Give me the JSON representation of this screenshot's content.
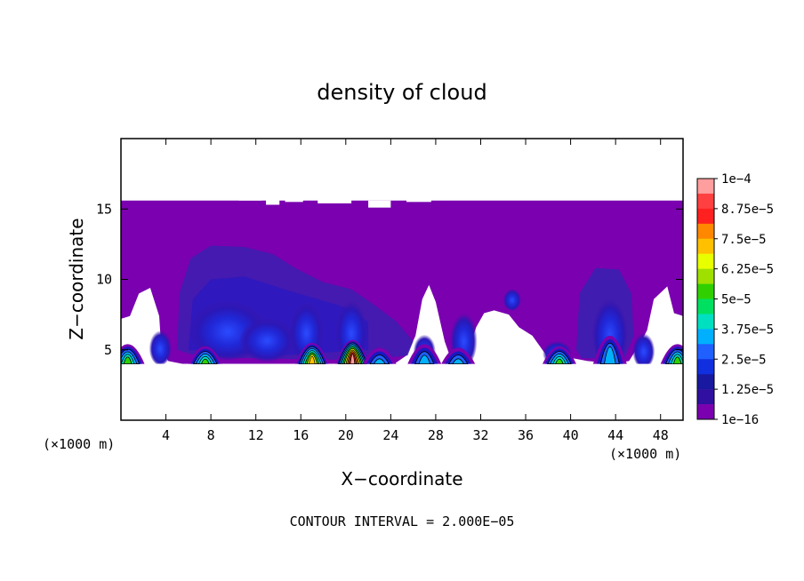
{
  "chart_data": {
    "type": "heatmap",
    "title": "density of cloud",
    "xlabel": "X−coordinate",
    "ylabel": "Z−coordinate",
    "x_unit_label": "(×1000 m)",
    "xlim": [
      0,
      50
    ],
    "ylim": [
      0,
      20
    ],
    "x_ticks": [
      4,
      8,
      12,
      16,
      20,
      24,
      28,
      32,
      36,
      40,
      44,
      48
    ],
    "y_ticks": [
      5,
      10,
      15
    ],
    "note": "CONTOUR INTERVAL = 2.000E−05",
    "colorbar": {
      "labels": [
        "1e−4",
        "8.75e−5",
        "7.5e−5",
        "6.25e−5",
        "5e−5",
        "3.75e−5",
        "2.5e−5",
        "1.25e−5",
        "1e−16"
      ],
      "colors": [
        "#ff9e9e",
        "#ff4040",
        "#ff2020",
        "#ff8800",
        "#ffc000",
        "#e8ff00",
        "#a0e000",
        "#30d000",
        "#00e060",
        "#00e0c0",
        "#00b0ff",
        "#2060ff",
        "#1030e0",
        "#1818a0",
        "#3010a0",
        "#7a00b0"
      ]
    },
    "regions": {
      "base_color": "#7a00b0",
      "mid_color": "#3b1fb0",
      "dark_color": "#2a18c0",
      "cloud_top_z": 15.6,
      "cloud_bottom_z": 4.0
    },
    "cores": [
      {
        "x": 0.6,
        "z": 4.8,
        "peak": "3.75e-5"
      },
      {
        "x": 7.5,
        "z": 4.5,
        "peak": "3.75e-5"
      },
      {
        "x": 17.0,
        "z": 5.0,
        "peak": "5e-5"
      },
      {
        "x": 20.6,
        "z": 5.4,
        "peak": "1e-4"
      },
      {
        "x": 23.0,
        "z": 4.3,
        "peak": "2.5e-5"
      },
      {
        "x": 27.0,
        "z": 4.8,
        "peak": "2.5e-5"
      },
      {
        "x": 30.0,
        "z": 4.3,
        "peak": "2.5e-5"
      },
      {
        "x": 39.0,
        "z": 4.5,
        "peak": "3.75e-5"
      },
      {
        "x": 43.5,
        "z": 6.0,
        "peak": "2.5e-5"
      },
      {
        "x": 49.5,
        "z": 4.8,
        "peak": "3.75e-5"
      }
    ]
  }
}
